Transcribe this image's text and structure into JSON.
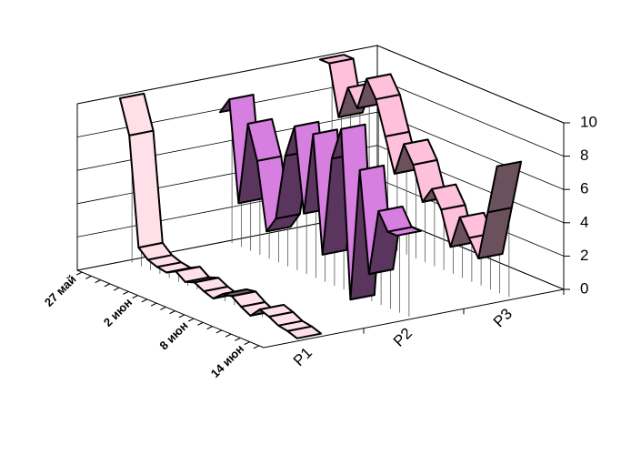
{
  "chart_data": {
    "type": "ribbon3d",
    "categories": [
      "27 май",
      null,
      null,
      null,
      null,
      null,
      "2 июн",
      null,
      null,
      null,
      null,
      null,
      "8 июн",
      null,
      null,
      null,
      null,
      null,
      "14 июн",
      null
    ],
    "series": [
      {
        "name": "P1",
        "color": "#ffe0e8",
        "values": [
          10,
          8,
          1.5,
          1,
          0.8,
          0.7,
          1,
          0.6,
          0.8,
          0.5,
          0.3,
          0.8,
          0.9,
          0.5,
          0.2,
          0.8,
          0.6,
          0.3,
          0.2,
          0
        ]
      },
      {
        "name": "P2",
        "color": "#d67fe0",
        "values": [
          8,
          9,
          3,
          8,
          6,
          2,
          3,
          7,
          9,
          4,
          9,
          2,
          8,
          10,
          0,
          8,
          2,
          6,
          5,
          5
        ]
      },
      {
        "name": "P3",
        "color": "#ffc0dc",
        "values": [
          10,
          10,
          7,
          9,
          8,
          10,
          9,
          7,
          5,
          7,
          6,
          4,
          5,
          4,
          2,
          4,
          3,
          2,
          5,
          8
        ]
      }
    ],
    "ylim": [
      0,
      10
    ],
    "yticks": [
      0,
      2,
      4,
      6,
      8,
      10
    ],
    "grid": true
  }
}
